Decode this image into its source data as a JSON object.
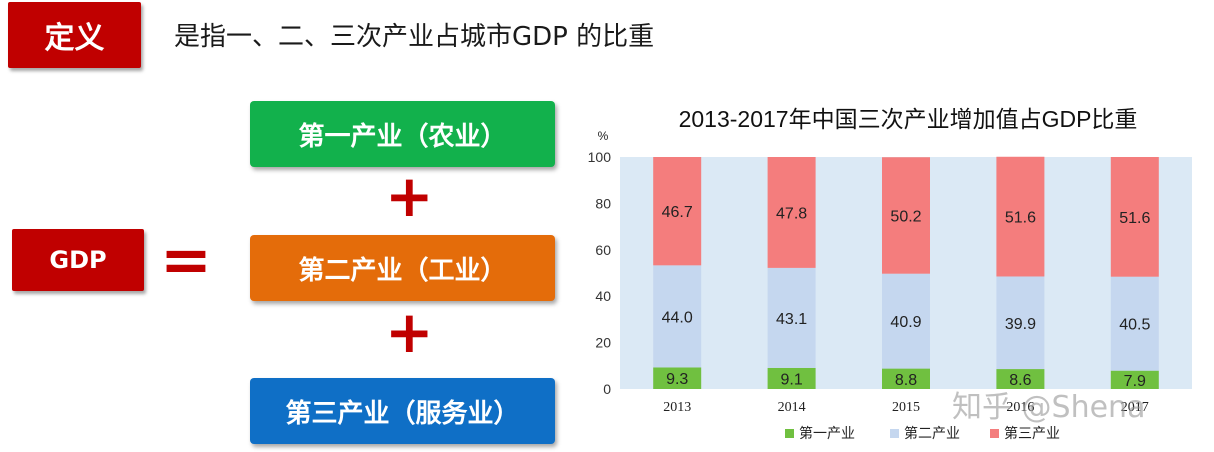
{
  "definition_label": "定义",
  "definition_text": "是指一、二、三次产业占城市GDP 的比重",
  "gdp_label": "GDP",
  "equals_sign": "=",
  "plus_sign": "+",
  "sectors": [
    {
      "label": "第一产业（农业）",
      "color": "#12b14c"
    },
    {
      "label": "第二产业（工业）",
      "color": "#e46c0a"
    },
    {
      "label": "第三产业（服务业）",
      "color": "#0f6fc6"
    }
  ],
  "colors": {
    "badge_red": "#c00000",
    "operator_red": "#c00000"
  },
  "watermark": "知乎 @Shena",
  "chart_data": {
    "type": "bar",
    "stacked": true,
    "title": "2013-2017年中国三次产业增加值占GDP比重",
    "ylabel": "%",
    "ylim": [
      0,
      100
    ],
    "yticks": [
      "0",
      "20",
      "40",
      "60",
      "80",
      "100"
    ],
    "categories": [
      "2013",
      "2014",
      "2015",
      "2016",
      "2017"
    ],
    "series": [
      {
        "name": "第一产业",
        "color": "#70c040",
        "values": [
          9.3,
          9.1,
          8.8,
          8.6,
          7.9
        ],
        "labels": [
          "9.3",
          "9.1",
          "8.8",
          "8.6",
          "7.9"
        ]
      },
      {
        "name": "第二产业",
        "color": "#c5d7ef",
        "values": [
          44.0,
          43.1,
          40.9,
          39.9,
          40.5
        ],
        "labels": [
          "44.0",
          "43.1",
          "40.9",
          "39.9",
          "40.5"
        ]
      },
      {
        "name": "第三产业",
        "color": "#f47d7d",
        "values": [
          46.7,
          47.8,
          50.2,
          51.6,
          51.6
        ],
        "labels": [
          "46.7",
          "47.8",
          "50.2",
          "51.6",
          "51.6"
        ]
      }
    ],
    "plot_background": "#dbe9f5",
    "grid": false,
    "legend_position": "bottom"
  }
}
